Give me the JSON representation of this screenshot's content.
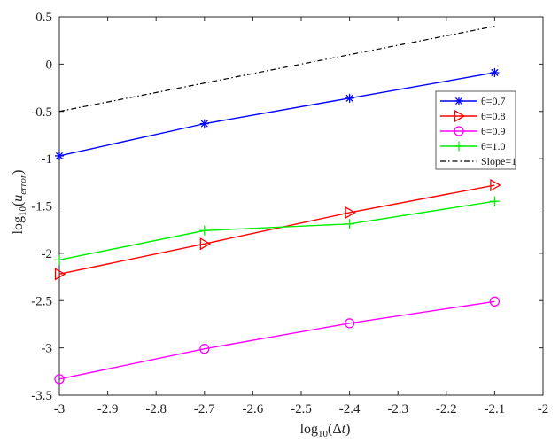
{
  "chart_data": {
    "type": "line",
    "title": "",
    "xlabel": "log10(Δt)",
    "ylabel": "log10(u_error)",
    "xlim": [
      -3,
      -2
    ],
    "ylim": [
      -3.5,
      0.5
    ],
    "x_ticks": [
      "-3",
      "-2.9",
      "-2.8",
      "-2.7",
      "-2.6",
      "-2.5",
      "-2.4",
      "-2.3",
      "-2.2",
      "-2.1",
      "-2"
    ],
    "y_ticks": [
      "0.5",
      "0",
      "-0.5",
      "-1",
      "-1.5",
      "-2",
      "-2.5",
      "-3",
      "-3.5"
    ],
    "grid": false,
    "legend_position": "right",
    "series": [
      {
        "name": "θ=0.7",
        "color": "#0000ff",
        "marker": "asterisk",
        "dash": "solid",
        "x": [
          -3,
          -2.7,
          -2.4,
          -2.1
        ],
        "y": [
          -0.97,
          -0.63,
          -0.36,
          -0.09
        ]
      },
      {
        "name": "θ=0.8",
        "color": "#ff0000",
        "marker": "triangle-right",
        "dash": "solid",
        "x": [
          -3,
          -2.7,
          -2.4,
          -2.1
        ],
        "y": [
          -2.22,
          -1.9,
          -1.57,
          -1.28
        ]
      },
      {
        "name": "θ=0.9",
        "color": "#ff00ff",
        "marker": "circle",
        "dash": "solid",
        "x": [
          -3,
          -2.7,
          -2.4,
          -2.1
        ],
        "y": [
          -3.33,
          -3.01,
          -2.74,
          -2.51
        ]
      },
      {
        "name": "θ=1.0",
        "color": "#00ee00",
        "marker": "plus",
        "dash": "solid",
        "x": [
          -3,
          -2.7,
          -2.4,
          -2.1
        ],
        "y": [
          -2.07,
          -1.76,
          -1.69,
          -1.45
        ]
      },
      {
        "name": "Slope=1",
        "color": "#000000",
        "marker": "none",
        "dash": "dashdot",
        "x": [
          -3,
          -2.1
        ],
        "y": [
          -0.5,
          0.4
        ]
      }
    ]
  }
}
